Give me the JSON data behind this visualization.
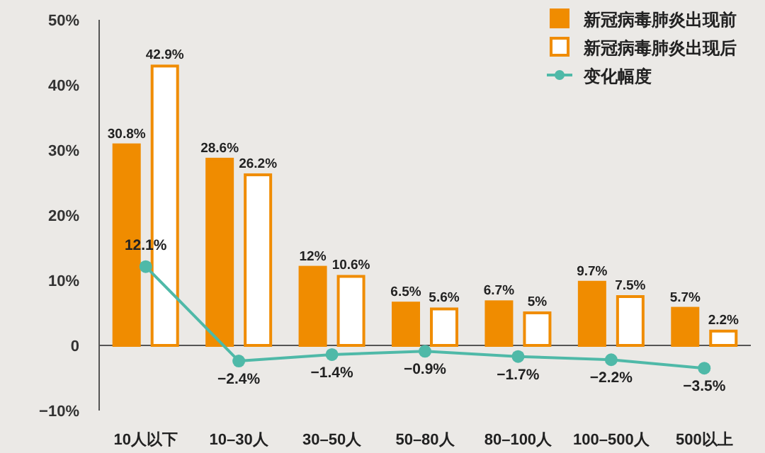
{
  "chart_data": {
    "type": "bar",
    "categories": [
      "10人以下",
      "10–30人",
      "30–50人",
      "50–80人",
      "80–100人",
      "100–500人",
      "500以上"
    ],
    "series": [
      {
        "name": "新冠病毒肺炎出现前",
        "color": "#f08c00",
        "values": [
          30.8,
          28.6,
          12,
          6.5,
          6.7,
          9.7,
          5.7
        ],
        "value_labels": [
          "30.8%",
          "28.6%",
          "12%",
          "6.5%",
          "6.7%",
          "9.7%",
          "5.7%"
        ]
      },
      {
        "name": "新冠病毒肺炎出现后",
        "color": "#ffffff",
        "values": [
          42.9,
          26.2,
          10.6,
          5.6,
          5,
          7.5,
          2.2
        ],
        "value_labels": [
          "42.9%",
          "26.2%",
          "10.6%",
          "5.6%",
          "5%",
          "7.5%",
          "2.2%"
        ]
      },
      {
        "name": "变化幅度",
        "type": "line",
        "color": "#4fb9a8",
        "marker": "circle",
        "values": [
          12.1,
          -2.4,
          -1.4,
          -0.9,
          -1.7,
          -2.2,
          -3.5
        ],
        "value_labels": [
          "12.1%",
          "−2.4%",
          "−1.4%",
          "−0.9%",
          "−1.7%",
          "−2.2%",
          "−3.5%"
        ]
      }
    ],
    "ylim": [
      -10,
      50
    ],
    "yticks": [
      {
        "value": -10,
        "label": "−10%"
      },
      {
        "value": 0,
        "label": "0"
      },
      {
        "value": 10,
        "label": "10%"
      },
      {
        "value": 20,
        "label": "20%"
      },
      {
        "value": 30,
        "label": "30%"
      },
      {
        "value": 40,
        "label": "40%"
      },
      {
        "value": 50,
        "label": "50%"
      }
    ],
    "legend": "top right"
  }
}
